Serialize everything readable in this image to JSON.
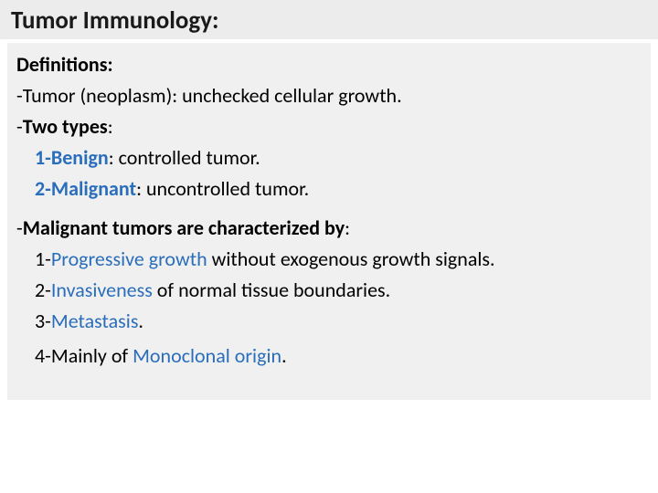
{
  "colors": {
    "title_bg": "#ececec",
    "content_bg": "#f0f0f0",
    "text": "#000000",
    "accent_blue": "#2a6ebb"
  },
  "typography": {
    "title_fontsize": 27,
    "body_fontsize": 22,
    "font_family": "Calibri"
  },
  "title": "Tumor Immunology:",
  "defs_heading": "Definitions:",
  "tumor_line_prefix": "-Tumor (neoplasm): unchecked cellular growth.",
  "two_types_dash": "-",
  "two_types_label": "Two types",
  "two_types_colon": ":",
  "type1_label": "1-Benign",
  "type1_rest": ": controlled tumor.",
  "type2_label": "2-Malignant",
  "type2_rest": ": uncontrolled tumor.",
  "malig_dash": "-",
  "malig_label": "Malignant tumors are characterized by",
  "malig_colon": ":",
  "c1_pre": "1-",
  "c1_term": "Progressive growth",
  "c1_post": " without exogenous growth signals.",
  "c2_pre": "2-",
  "c2_term": "Invasiveness",
  "c2_post": " of normal tissue boundaries.",
  "c3_pre": "3-",
  "c3_term": "Metastasis",
  "c3_post": ".",
  "c4_pre": "4-Mainly of ",
  "c4_term": "Monoclonal origin",
  "c4_post": "."
}
